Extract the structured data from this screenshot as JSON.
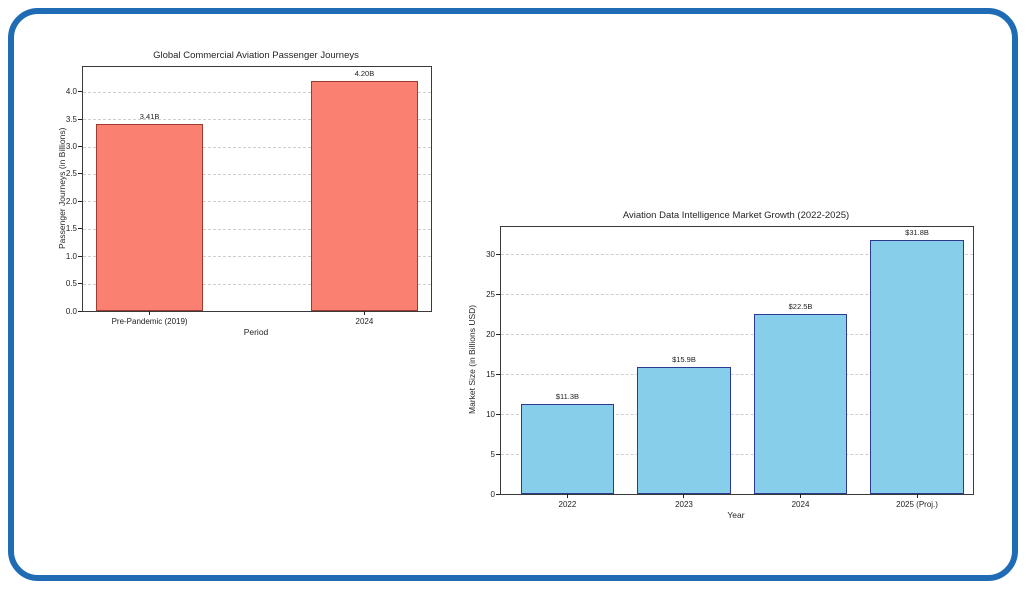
{
  "frame": {
    "border_color": "#1f6cb5",
    "background": "#ffffff"
  },
  "chart_data": [
    {
      "type": "bar",
      "title": "Global Commercial Aviation Passenger Journeys",
      "xlabel": "Period",
      "ylabel": "Passenger Journeys (in Billions)",
      "categories": [
        "Pre-Pandemic (2019)",
        "2024"
      ],
      "values": [
        3.41,
        4.2
      ],
      "bar_labels": [
        "3.41B",
        "4.20B"
      ],
      "yticks": [
        0,
        0.5,
        1,
        1.5,
        2,
        2.5,
        3,
        3.5,
        4
      ],
      "ytick_labels": [
        "0.0",
        "0.5",
        "1.0",
        "1.5",
        "2.0",
        "2.5",
        "3.0",
        "3.5",
        "4.0"
      ],
      "ylim": [
        0,
        4.45
      ],
      "xlim": [
        -0.31,
        1.31
      ],
      "bar_width": 0.5,
      "grid": true,
      "legend": "none",
      "bar_color": "#fa8072",
      "bar_edge_color": "#9c3b30"
    },
    {
      "type": "bar",
      "title": "Aviation Data Intelligence Market Growth (2022-2025)",
      "xlabel": "Year",
      "ylabel": "Market Size (in Billions USD)",
      "categories": [
        "2022",
        "2023",
        "2024",
        "2025 (Proj.)"
      ],
      "values": [
        11.3,
        15.9,
        22.5,
        31.8
      ],
      "bar_labels": [
        "$11.3B",
        "$15.9B",
        "$22.5B",
        "$31.8B"
      ],
      "yticks": [
        0,
        5,
        10,
        15,
        20,
        25,
        30
      ],
      "ytick_labels": [
        "0",
        "5",
        "10",
        "15",
        "20",
        "25",
        "30"
      ],
      "ylim": [
        0,
        33.4
      ],
      "xlim": [
        -0.57,
        3.48
      ],
      "bar_width": 0.8,
      "grid": true,
      "legend": "none",
      "bar_color": "#87ceeb",
      "bar_edge_color": "#2b3990"
    }
  ]
}
